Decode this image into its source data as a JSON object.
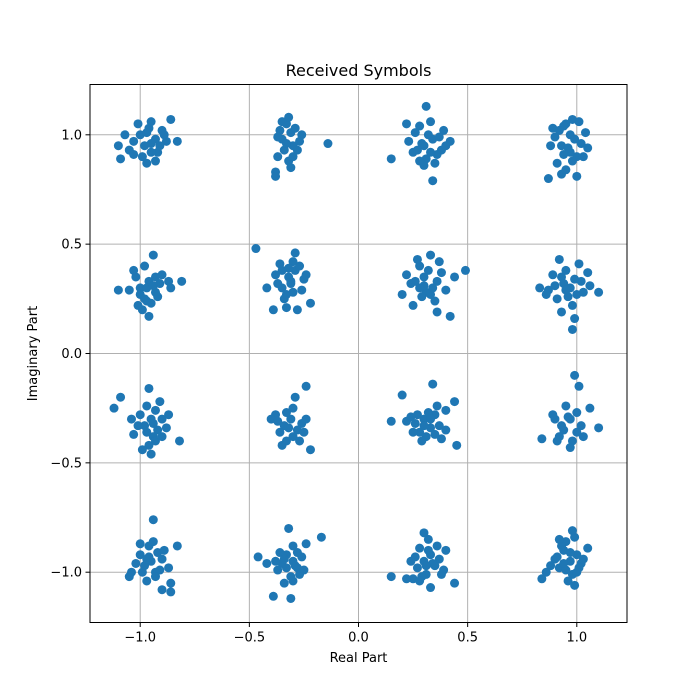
{
  "chart_data": {
    "type": "scatter",
    "title": "Received Symbols",
    "xlabel": "Real Part",
    "ylabel": "Imaginary Part",
    "xlim": [
      -1.23,
      1.23
    ],
    "ylim": [
      -1.23,
      1.23
    ],
    "x_ticks": [
      -1.0,
      -0.5,
      0.0,
      0.5,
      1.0
    ],
    "y_ticks": [
      -1.0,
      -0.5,
      0.0,
      0.5,
      1.0
    ],
    "x_tick_labels": [
      "−1.0",
      "−0.5",
      "0.0",
      "0.5",
      "1.0"
    ],
    "y_tick_labels": [
      "−1.0",
      "−0.5",
      "0.0",
      "0.5",
      "1.0"
    ],
    "grid": true,
    "marker_color": "#1f77b4",
    "points": [
      [
        -1.0,
        1.0
      ],
      [
        -0.96,
        1.03
      ],
      [
        -0.93,
        0.98
      ],
      [
        -0.9,
        1.02
      ],
      [
        -0.98,
        0.95
      ],
      [
        -0.92,
        0.92
      ],
      [
        -1.03,
        0.97
      ],
      [
        -0.95,
        1.06
      ],
      [
        -0.86,
        1.07
      ],
      [
        -0.88,
        0.97
      ],
      [
        -1.05,
        0.93
      ],
      [
        -0.93,
        0.88
      ],
      [
        -0.99,
        0.9
      ],
      [
        -1.1,
        0.95
      ],
      [
        -0.83,
        0.97
      ],
      [
        -1.07,
        1.0
      ],
      [
        -0.95,
        0.96
      ],
      [
        -1.03,
        0.91
      ],
      [
        -0.97,
        1.01
      ],
      [
        -0.91,
        0.95
      ],
      [
        -1.01,
        1.05
      ],
      [
        -0.95,
        0.92
      ],
      [
        -1.09,
        0.89
      ],
      [
        -0.89,
        1.0
      ],
      [
        -0.97,
        0.87
      ],
      [
        -0.33,
        1.05
      ],
      [
        -0.35,
        0.98
      ],
      [
        -0.3,
        0.95
      ],
      [
        -0.37,
        0.9
      ],
      [
        -0.31,
        1.01
      ],
      [
        -0.28,
        0.93
      ],
      [
        -0.36,
        1.02
      ],
      [
        -0.32,
        0.88
      ],
      [
        -0.38,
        0.83
      ],
      [
        -0.38,
        0.81
      ],
      [
        -0.14,
        0.96
      ],
      [
        -0.32,
        1.08
      ],
      [
        -0.27,
        0.97
      ],
      [
        -0.34,
        0.93
      ],
      [
        -0.29,
        1.03
      ],
      [
        -0.37,
        0.99
      ],
      [
        -0.3,
        0.9
      ],
      [
        -0.33,
        0.96
      ],
      [
        -0.31,
        0.85
      ],
      [
        -0.26,
        1.0
      ],
      [
        -0.35,
        1.06
      ],
      [
        0.3,
        0.95
      ],
      [
        0.28,
        1.04
      ],
      [
        0.34,
        0.98
      ],
      [
        0.25,
        0.92
      ],
      [
        0.31,
        0.89
      ],
      [
        0.38,
        0.93
      ],
      [
        0.29,
        0.96
      ],
      [
        0.33,
        1.06
      ],
      [
        0.31,
        1.13
      ],
      [
        0.35,
        0.87
      ],
      [
        0.23,
        0.97
      ],
      [
        0.4,
        0.95
      ],
      [
        0.42,
        0.97
      ],
      [
        0.34,
        0.79
      ],
      [
        0.15,
        0.89
      ],
      [
        0.26,
        1.01
      ],
      [
        0.36,
        0.91
      ],
      [
        0.3,
        0.86
      ],
      [
        0.27,
        0.93
      ],
      [
        0.39,
        1.02
      ],
      [
        0.22,
        1.05
      ],
      [
        0.33,
        0.92
      ],
      [
        0.37,
        0.99
      ],
      [
        0.28,
        0.88
      ],
      [
        0.32,
        1.0
      ],
      [
        0.97,
        1.0
      ],
      [
        0.93,
        0.95
      ],
      [
        1.0,
        0.9
      ],
      [
        0.95,
        1.05
      ],
      [
        1.02,
        0.96
      ],
      [
        0.9,
        0.99
      ],
      [
        0.98,
        0.88
      ],
      [
        0.94,
        1.04
      ],
      [
        1.04,
        1.01
      ],
      [
        0.91,
        0.87
      ],
      [
        0.88,
        0.95
      ],
      [
        0.97,
        0.92
      ],
      [
        1.01,
        1.06
      ],
      [
        0.93,
        0.82
      ],
      [
        1.0,
        0.81
      ],
      [
        0.95,
        0.84
      ],
      [
        0.87,
        0.8
      ],
      [
        0.99,
        0.98
      ],
      [
        0.92,
        1.02
      ],
      [
        1.03,
        0.9
      ],
      [
        0.96,
        0.94
      ],
      [
        0.89,
        1.03
      ],
      [
        1.05,
        0.94
      ],
      [
        0.98,
        1.07
      ],
      [
        0.94,
        0.91
      ],
      [
        -1.0,
        0.3
      ],
      [
        -0.96,
        0.33
      ],
      [
        -0.93,
        0.28
      ],
      [
        -0.97,
        0.24
      ],
      [
        -1.02,
        0.35
      ],
      [
        -0.91,
        0.32
      ],
      [
        -0.98,
        0.4
      ],
      [
        -0.94,
        0.45
      ],
      [
        -1.05,
        0.29
      ],
      [
        -0.87,
        0.33
      ],
      [
        -0.95,
        0.23
      ],
      [
        -0.99,
        0.2
      ],
      [
        -0.96,
        0.17
      ],
      [
        -1.1,
        0.29
      ],
      [
        -0.81,
        0.33
      ],
      [
        -0.92,
        0.26
      ],
      [
        -1.03,
        0.38
      ],
      [
        -0.97,
        0.3
      ],
      [
        -0.9,
        0.36
      ],
      [
        -1.01,
        0.22
      ],
      [
        -0.94,
        0.31
      ],
      [
        -0.86,
        0.3
      ],
      [
        -1.0,
        0.27
      ],
      [
        -0.93,
        0.35
      ],
      [
        -0.98,
        0.25
      ],
      [
        -0.32,
        0.35
      ],
      [
        -0.35,
        0.3
      ],
      [
        -0.29,
        0.38
      ],
      [
        -0.34,
        0.25
      ],
      [
        -0.31,
        0.32
      ],
      [
        -0.27,
        0.4
      ],
      [
        -0.38,
        0.36
      ],
      [
        -0.3,
        0.28
      ],
      [
        -0.33,
        0.21
      ],
      [
        -0.25,
        0.34
      ],
      [
        -0.36,
        0.41
      ],
      [
        -0.29,
        0.46
      ],
      [
        -0.47,
        0.48
      ],
      [
        -0.39,
        0.2
      ],
      [
        -0.42,
        0.3
      ],
      [
        -0.22,
        0.23
      ],
      [
        -0.31,
        0.33
      ],
      [
        -0.28,
        0.2
      ],
      [
        -0.35,
        0.38
      ],
      [
        -0.3,
        0.42
      ],
      [
        -0.26,
        0.29
      ],
      [
        -0.33,
        0.27
      ],
      [
        -0.37,
        0.32
      ],
      [
        -0.24,
        0.36
      ],
      [
        -0.32,
        0.39
      ],
      [
        0.3,
        0.35
      ],
      [
        0.34,
        0.3
      ],
      [
        0.28,
        0.4
      ],
      [
        0.36,
        0.33
      ],
      [
        0.31,
        0.28
      ],
      [
        0.27,
        0.43
      ],
      [
        0.33,
        0.45
      ],
      [
        0.24,
        0.32
      ],
      [
        0.38,
        0.37
      ],
      [
        0.29,
        0.26
      ],
      [
        0.35,
        0.24
      ],
      [
        0.22,
        0.36
      ],
      [
        0.4,
        0.29
      ],
      [
        0.26,
        0.33
      ],
      [
        0.32,
        0.38
      ],
      [
        0.49,
        0.38
      ],
      [
        0.42,
        0.17
      ],
      [
        0.36,
        0.19
      ],
      [
        0.2,
        0.27
      ],
      [
        0.3,
        0.31
      ],
      [
        0.25,
        0.22
      ],
      [
        0.44,
        0.35
      ],
      [
        0.33,
        0.27
      ],
      [
        0.37,
        0.42
      ],
      [
        0.28,
        0.3
      ],
      [
        0.97,
        0.3
      ],
      [
        0.93,
        0.35
      ],
      [
        1.0,
        0.27
      ],
      [
        0.95,
        0.38
      ],
      [
        0.9,
        0.31
      ],
      [
        1.02,
        0.33
      ],
      [
        0.98,
        0.22
      ],
      [
        0.91,
        0.25
      ],
      [
        0.87,
        0.29
      ],
      [
        0.83,
        0.3
      ],
      [
        1.05,
        0.37
      ],
      [
        0.92,
        0.43
      ],
      [
        0.99,
        0.16
      ],
      [
        1.1,
        0.28
      ],
      [
        0.98,
        0.11
      ],
      [
        1.03,
        0.28
      ],
      [
        0.94,
        0.32
      ],
      [
        0.89,
        0.36
      ],
      [
        1.01,
        0.41
      ],
      [
        0.96,
        0.26
      ],
      [
        0.93,
        0.19
      ],
      [
        1.06,
        0.31
      ],
      [
        0.86,
        0.27
      ],
      [
        0.99,
        0.34
      ],
      [
        0.95,
        0.29
      ],
      [
        -0.95,
        -0.3
      ],
      [
        -0.92,
        -0.35
      ],
      [
        -0.98,
        -0.33
      ],
      [
        -0.94,
        -0.38
      ],
      [
        -1.0,
        -0.28
      ],
      [
        -0.9,
        -0.3
      ],
      [
        -0.96,
        -0.42
      ],
      [
        -0.93,
        -0.26
      ],
      [
        -0.97,
        -0.24
      ],
      [
        -1.03,
        -0.37
      ],
      [
        -0.88,
        -0.34
      ],
      [
        -1.12,
        -0.25
      ],
      [
        -1.09,
        -0.2
      ],
      [
        -0.82,
        -0.4
      ],
      [
        -0.95,
        -0.46
      ],
      [
        -0.99,
        -0.44
      ],
      [
        -0.91,
        -0.22
      ],
      [
        -0.96,
        -0.16
      ],
      [
        -0.94,
        -0.32
      ],
      [
        -1.01,
        -0.33
      ],
      [
        -0.87,
        -0.28
      ],
      [
        -0.93,
        -0.4
      ],
      [
        -0.97,
        -0.36
      ],
      [
        -1.04,
        -0.3
      ],
      [
        -0.9,
        -0.38
      ],
      [
        -0.31,
        -0.3
      ],
      [
        -0.34,
        -0.33
      ],
      [
        -0.28,
        -0.35
      ],
      [
        -0.33,
        -0.27
      ],
      [
        -0.3,
        -0.38
      ],
      [
        -0.26,
        -0.32
      ],
      [
        -0.36,
        -0.36
      ],
      [
        -0.3,
        -0.25
      ],
      [
        -0.38,
        -0.28
      ],
      [
        -0.27,
        -0.4
      ],
      [
        -0.24,
        -0.3
      ],
      [
        -0.35,
        -0.42
      ],
      [
        -0.24,
        -0.15
      ],
      [
        -0.4,
        -0.3
      ],
      [
        -0.22,
        -0.44
      ],
      [
        -0.29,
        -0.2
      ],
      [
        -0.32,
        -0.34
      ],
      [
        -0.25,
        -0.36
      ],
      [
        -0.37,
        -0.31
      ],
      [
        -0.33,
        -0.4
      ],
      [
        0.3,
        -0.3
      ],
      [
        0.33,
        -0.34
      ],
      [
        0.28,
        -0.36
      ],
      [
        0.35,
        -0.28
      ],
      [
        0.31,
        -0.38
      ],
      [
        0.26,
        -0.32
      ],
      [
        0.37,
        -0.33
      ],
      [
        0.32,
        -0.27
      ],
      [
        0.34,
        -0.14
      ],
      [
        0.22,
        -0.31
      ],
      [
        0.2,
        -0.19
      ],
      [
        0.4,
        -0.26
      ],
      [
        0.45,
        -0.42
      ],
      [
        0.44,
        -0.22
      ],
      [
        0.15,
        -0.31
      ],
      [
        0.25,
        -0.36
      ],
      [
        0.38,
        -0.39
      ],
      [
        0.36,
        -0.24
      ],
      [
        0.29,
        -0.4
      ],
      [
        0.33,
        -0.3
      ],
      [
        0.27,
        -0.28
      ],
      [
        0.4,
        -0.35
      ],
      [
        0.3,
        -0.33
      ],
      [
        0.35,
        -0.37
      ],
      [
        0.24,
        -0.29
      ],
      [
        0.97,
        -0.3
      ],
      [
        0.94,
        -0.35
      ],
      [
        1.0,
        -0.27
      ],
      [
        0.92,
        -0.38
      ],
      [
        0.98,
        -0.4
      ],
      [
        0.95,
        -0.24
      ],
      [
        1.02,
        -0.33
      ],
      [
        0.9,
        -0.3
      ],
      [
        0.99,
        -0.1
      ],
      [
        1.01,
        -0.15
      ],
      [
        0.84,
        -0.39
      ],
      [
        1.06,
        -0.25
      ],
      [
        1.1,
        -0.34
      ],
      [
        0.89,
        -0.28
      ],
      [
        0.97,
        -0.43
      ],
      [
        1.0,
        -0.36
      ],
      [
        0.93,
        -0.33
      ],
      [
        0.96,
        -0.29
      ],
      [
        0.91,
        -0.4
      ],
      [
        1.03,
        -0.38
      ],
      [
        -0.95,
        -0.95
      ],
      [
        -0.92,
        -0.91
      ],
      [
        -0.98,
        -0.97
      ],
      [
        -0.93,
        -1.0
      ],
      [
        -1.0,
        -0.92
      ],
      [
        -0.96,
        -0.88
      ],
      [
        -0.9,
        -0.94
      ],
      [
        -0.97,
        -1.04
      ],
      [
        -0.94,
        -0.86
      ],
      [
        -0.99,
        -1.0
      ],
      [
        -0.87,
        -0.98
      ],
      [
        -1.05,
        -1.02
      ],
      [
        -0.83,
        -0.88
      ],
      [
        -0.86,
        -1.05
      ],
      [
        -0.9,
        -1.08
      ],
      [
        -0.86,
        -1.09
      ],
      [
        -1.02,
        -0.96
      ],
      [
        -0.94,
        -0.76
      ],
      [
        -0.96,
        -0.93
      ],
      [
        -0.91,
        -0.99
      ],
      [
        -1.0,
        -0.87
      ],
      [
        -0.93,
        -1.02
      ],
      [
        -0.89,
        -0.9
      ],
      [
        -0.97,
        -0.94
      ],
      [
        -1.04,
        -1.0
      ],
      [
        -0.3,
        -0.95
      ],
      [
        -0.33,
        -0.92
      ],
      [
        -0.28,
        -0.98
      ],
      [
        -0.35,
        -0.96
      ],
      [
        -0.31,
        -1.02
      ],
      [
        -0.26,
        -0.93
      ],
      [
        -0.37,
        -0.99
      ],
      [
        -0.3,
        -0.88
      ],
      [
        -0.34,
        -1.05
      ],
      [
        -0.32,
        -0.8
      ],
      [
        -0.46,
        -0.93
      ],
      [
        -0.39,
        -1.11
      ],
      [
        -0.31,
        -1.12
      ],
      [
        -0.24,
        -0.87
      ],
      [
        -0.17,
        -0.84
      ],
      [
        -0.42,
        -0.96
      ],
      [
        -0.27,
        -1.01
      ],
      [
        -0.29,
        -0.97
      ],
      [
        -0.36,
        -0.91
      ],
      [
        -0.33,
        -0.98
      ],
      [
        -0.25,
        -0.99
      ],
      [
        -0.38,
        -0.95
      ],
      [
        -0.3,
        -1.04
      ],
      [
        -0.28,
        -0.91
      ],
      [
        -0.34,
        -0.94
      ],
      [
        0.3,
        -0.95
      ],
      [
        0.33,
        -0.92
      ],
      [
        0.27,
        -0.98
      ],
      [
        0.35,
        -0.97
      ],
      [
        0.31,
        -1.01
      ],
      [
        0.28,
        -0.89
      ],
      [
        0.37,
        -0.94
      ],
      [
        0.25,
        -1.03
      ],
      [
        0.32,
        -0.85
      ],
      [
        0.3,
        -0.82
      ],
      [
        0.22,
        -1.03
      ],
      [
        0.15,
        -1.02
      ],
      [
        0.4,
        -0.9
      ],
      [
        0.44,
        -1.05
      ],
      [
        0.33,
        -1.07
      ],
      [
        0.39,
        -0.99
      ],
      [
        0.26,
        -0.93
      ],
      [
        0.34,
        -0.96
      ],
      [
        0.29,
        -1.02
      ],
      [
        0.36,
        -0.88
      ],
      [
        0.31,
        -0.97
      ],
      [
        0.24,
        -0.95
      ],
      [
        0.38,
        -1.01
      ],
      [
        0.32,
        -0.9
      ],
      [
        0.28,
        -1.04
      ],
      [
        0.97,
        -0.95
      ],
      [
        0.94,
        -0.9
      ],
      [
        1.0,
        -0.92
      ],
      [
        0.92,
        -0.98
      ],
      [
        0.98,
        -1.01
      ],
      [
        0.95,
        -0.86
      ],
      [
        1.02,
        -0.96
      ],
      [
        0.9,
        -0.94
      ],
      [
        0.99,
        -0.84
      ],
      [
        0.98,
        -0.81
      ],
      [
        0.86,
        -1.0
      ],
      [
        1.05,
        -0.89
      ],
      [
        0.84,
        -1.03
      ],
      [
        0.91,
        -0.93
      ],
      [
        0.96,
        -1.04
      ],
      [
        1.01,
        -0.98
      ],
      [
        0.93,
        -0.88
      ],
      [
        0.97,
        -0.91
      ],
      [
        0.88,
        -0.97
      ],
      [
        1.03,
        -0.94
      ],
      [
        0.95,
        -0.99
      ],
      [
        0.99,
        -1.06
      ],
      [
        0.92,
        -0.85
      ],
      [
        1.0,
        -1.0
      ],
      [
        0.94,
        -0.96
      ]
    ]
  }
}
